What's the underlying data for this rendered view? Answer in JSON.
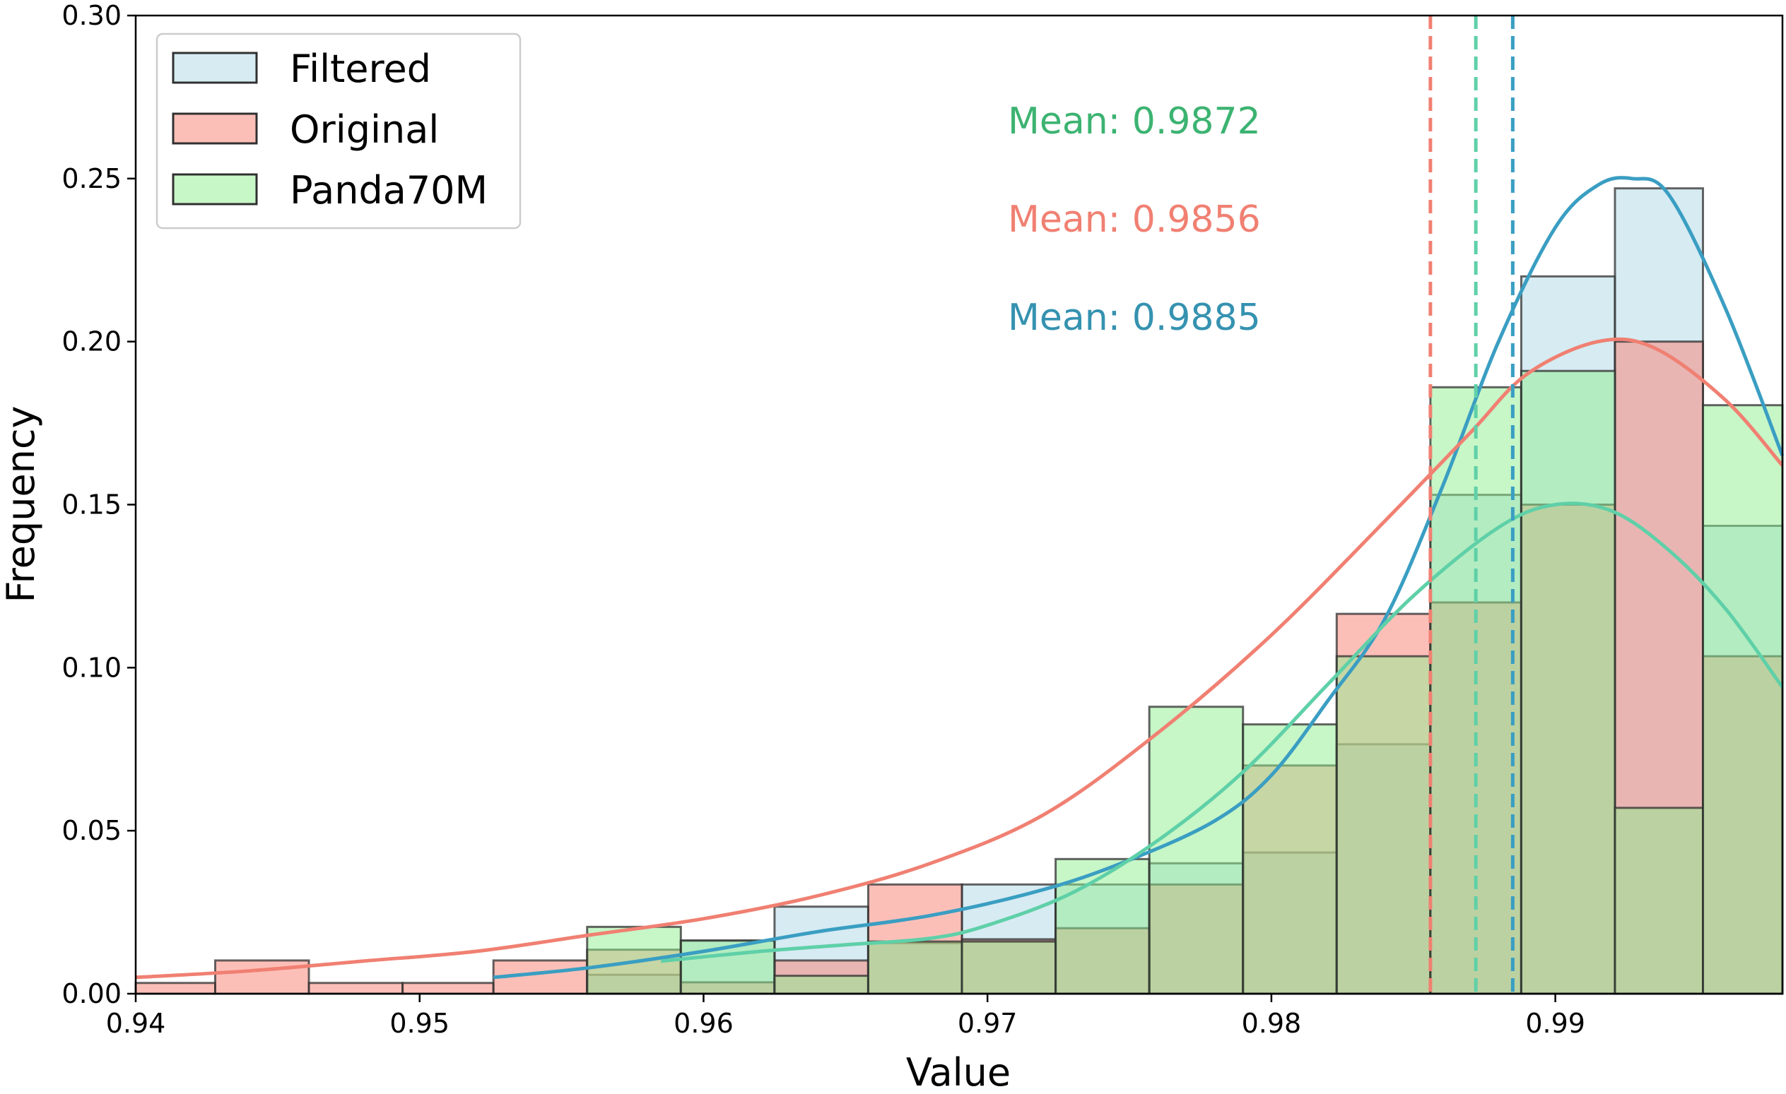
{
  "chart_data": {
    "type": "histogram",
    "title": "",
    "xlabel": "Value",
    "ylabel": "Frequency",
    "xlim": [
      0.94,
      0.998
    ],
    "ylim": [
      0,
      0.3
    ],
    "xticks": [
      {
        "value": 0.94,
        "label": "0.94"
      },
      {
        "value": 0.95,
        "label": "0.95"
      },
      {
        "value": 0.96,
        "label": "0.96"
      },
      {
        "value": 0.97,
        "label": "0.97"
      },
      {
        "value": 0.98,
        "label": "0.98"
      },
      {
        "value": 0.99,
        "label": "0.99"
      }
    ],
    "yticks": [
      {
        "value": 0.0,
        "label": "0.00"
      },
      {
        "value": 0.05,
        "label": "0.05"
      },
      {
        "value": 0.1,
        "label": "0.10"
      },
      {
        "value": 0.15,
        "label": "0.15"
      },
      {
        "value": 0.2,
        "label": "0.20"
      },
      {
        "value": 0.25,
        "label": "0.25"
      },
      {
        "value": 0.3,
        "label": "0.30"
      }
    ],
    "bin_edges": [
      0.9399,
      0.9428,
      0.9461,
      0.9494,
      0.9526,
      0.9559,
      0.9592,
      0.9625,
      0.9658,
      0.9691,
      0.9724,
      0.9757,
      0.979,
      0.9823,
      0.9856,
      0.9888,
      0.9921,
      0.9952
    ],
    "legend": {
      "location": "upper left"
    },
    "series": [
      {
        "name": "Filtered",
        "fill": "#add8e6",
        "edge": "#303030",
        "values": [
          0,
          0,
          0,
          0,
          0,
          0.0058,
          0.0163,
          0.0267,
          0.0155,
          0.0335,
          0.0335,
          0.04,
          0.0433,
          0.0765,
          0.153,
          0.22,
          0.247,
          0.1435
        ],
        "kde_color": "#3a9ec2",
        "kde": [
          [
            0.9526,
            0.005
          ],
          [
            0.956,
            0.008
          ],
          [
            0.96,
            0.013
          ],
          [
            0.964,
            0.019
          ],
          [
            0.968,
            0.024
          ],
          [
            0.972,
            0.032
          ],
          [
            0.975,
            0.041
          ],
          [
            0.978,
            0.053
          ],
          [
            0.98,
            0.067
          ],
          [
            0.982,
            0.09
          ],
          [
            0.984,
            0.115
          ],
          [
            0.986,
            0.155
          ],
          [
            0.988,
            0.2
          ],
          [
            0.99,
            0.235
          ],
          [
            0.9915,
            0.248
          ],
          [
            0.9927,
            0.25
          ],
          [
            0.994,
            0.245
          ],
          [
            0.996,
            0.21
          ],
          [
            0.998,
            0.165
          ]
        ]
      },
      {
        "name": "Original",
        "fill": "#fa8072",
        "edge": "#303030",
        "values": [
          0.0033,
          0.0102,
          0.0033,
          0.0033,
          0.0102,
          0.0135,
          0.0035,
          0.0102,
          0.0335,
          0.0167,
          0.0201,
          0.0335,
          0.07,
          0.1165,
          0.12,
          0.15,
          0.2,
          0.1035
        ],
        "kde_color": "#f08072",
        "kde": [
          [
            0.94,
            0.005
          ],
          [
            0.944,
            0.007
          ],
          [
            0.948,
            0.01
          ],
          [
            0.952,
            0.013
          ],
          [
            0.956,
            0.018
          ],
          [
            0.96,
            0.023
          ],
          [
            0.964,
            0.03
          ],
          [
            0.968,
            0.04
          ],
          [
            0.972,
            0.055
          ],
          [
            0.976,
            0.08
          ],
          [
            0.98,
            0.11
          ],
          [
            0.984,
            0.145
          ],
          [
            0.987,
            0.172
          ],
          [
            0.989,
            0.19
          ],
          [
            0.9915,
            0.2
          ],
          [
            0.9935,
            0.198
          ],
          [
            0.996,
            0.182
          ],
          [
            0.998,
            0.162
          ]
        ]
      },
      {
        "name": "Panda70M",
        "fill": "#90ee90",
        "edge": "#303030",
        "values": [
          0,
          0,
          0,
          0,
          0,
          0.0205,
          0.0163,
          0.0055,
          0.016,
          0.016,
          0.0413,
          0.088,
          0.0826,
          0.1035,
          0.186,
          0.191,
          0.057,
          0.1805
        ],
        "kde_color": "#5fd0a8",
        "kde": [
          [
            0.9585,
            0.01
          ],
          [
            0.962,
            0.013
          ],
          [
            0.965,
            0.015
          ],
          [
            0.968,
            0.017
          ],
          [
            0.97,
            0.021
          ],
          [
            0.973,
            0.031
          ],
          [
            0.976,
            0.047
          ],
          [
            0.979,
            0.068
          ],
          [
            0.982,
            0.095
          ],
          [
            0.985,
            0.122
          ],
          [
            0.988,
            0.143
          ],
          [
            0.99,
            0.15
          ],
          [
            0.992,
            0.148
          ],
          [
            0.994,
            0.136
          ],
          [
            0.996,
            0.118
          ],
          [
            0.998,
            0.094
          ]
        ]
      }
    ],
    "mean_lines": [
      {
        "value": 0.9856,
        "color": "#f08072"
      },
      {
        "value": 0.9872,
        "color": "#5fd0a8"
      },
      {
        "value": 0.9885,
        "color": "#3a9ec2"
      }
    ],
    "annotations": [
      {
        "text": "Mean: 0.9872",
        "color": "#3cb371"
      },
      {
        "text": "Mean: 0.9856",
        "color": "#f08072"
      },
      {
        "text": "Mean: 0.9885",
        "color": "#3592b0"
      }
    ]
  }
}
